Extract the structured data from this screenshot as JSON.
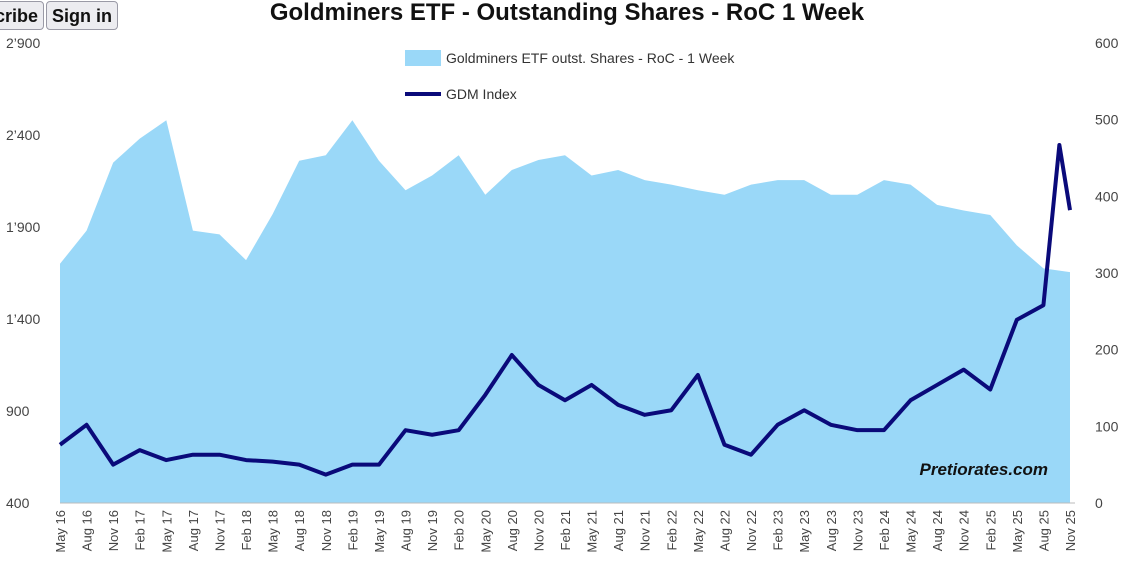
{
  "header": {
    "subscribe_label": "Subscribe",
    "signin_label": "Sign in"
  },
  "watermark": "Pretiorates.com",
  "colors": {
    "area": "#9ad8f8",
    "line": "#0a0a7a"
  },
  "chart_data": {
    "type": "area+line",
    "title": "Goldminers ETF - Outstanding Shares - RoC 1 Week",
    "categories": [
      "May 16",
      "Aug 16",
      "Nov 16",
      "Feb 17",
      "May 17",
      "Aug 17",
      "Nov 17",
      "Feb 18",
      "May 18",
      "Aug 18",
      "Nov 18",
      "Feb 19",
      "May 19",
      "Aug 19",
      "Nov 19",
      "Feb 20",
      "May 20",
      "Aug 20",
      "Nov 20",
      "Feb 21",
      "May 21",
      "Aug 21",
      "Nov 21",
      "Feb 22",
      "May 22",
      "Aug 22",
      "Nov 22",
      "Feb 23",
      "May 23",
      "Aug 23",
      "Nov 23",
      "Feb 24",
      "May 24",
      "Aug 24",
      "Nov 24",
      "Feb 25",
      "May 25",
      "Aug 25",
      "Nov 25"
    ],
    "left_axis": {
      "ylim": [
        400,
        2900
      ],
      "ticks": [
        "400",
        "900",
        "1’400",
        "1’900",
        "2’400",
        "2’900"
      ],
      "tick_values": [
        400,
        900,
        1400,
        1900,
        2400,
        2900
      ]
    },
    "right_axis": {
      "ylim": [
        0,
        600
      ],
      "ticks": [
        "0",
        "100",
        "200",
        "300",
        "400",
        "500",
        "600"
      ],
      "tick_values": [
        0,
        100,
        200,
        300,
        400,
        500,
        600
      ]
    },
    "series": [
      {
        "name": "Goldminers ETF outst. Shares - RoC - 1 Week",
        "type": "area",
        "axis": "left",
        "values": [
          1700,
          1880,
          2250,
          2380,
          2480,
          1880,
          1860,
          1720,
          1970,
          2260,
          2290,
          2480,
          2260,
          2100,
          2180,
          2290,
          2075,
          2210,
          2264,
          2290,
          2180,
          2210,
          2155,
          2130,
          2100,
          2075,
          2130,
          2155,
          2155,
          2075,
          2075,
          2155,
          2130,
          2020,
          1990,
          1965,
          1800,
          1675,
          1655
        ]
      },
      {
        "name": "GDM Index",
        "type": "line",
        "axis": "right",
        "values": [
          76,
          102,
          50,
          69,
          56,
          63,
          63,
          56,
          54,
          50,
          37,
          50,
          50,
          95,
          89,
          95,
          141,
          193,
          154,
          134,
          154,
          128,
          115,
          121,
          167,
          76,
          63,
          102,
          121,
          102,
          95,
          95,
          134,
          154,
          174,
          148,
          239,
          258,
          382
        ],
        "extra_points": [
          {
            "after_index": 37,
            "fraction": 0.6,
            "value": 467
          }
        ]
      }
    ],
    "legend": "top-center",
    "grid": false
  }
}
